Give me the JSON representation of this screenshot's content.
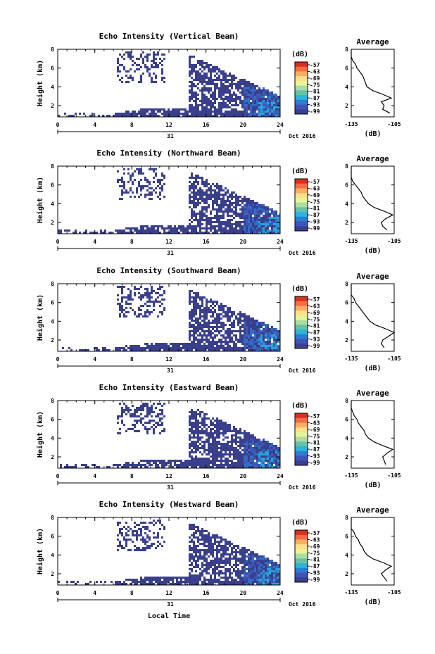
{
  "figure": {
    "x_axis_label": "Local Time",
    "day_label": "31",
    "month_label": "Oct 2016",
    "colorbar_unit": "(dB)",
    "colorbar_ticks": [
      "-57",
      "-63",
      "-69",
      "-75",
      "-81",
      "-87",
      "-93",
      "-99"
    ],
    "colorbar_colors": [
      "#d7301f",
      "#f46d43",
      "#fdae61",
      "#fee08b",
      "#e6f598",
      "#abdda4",
      "#66c2a5",
      "#29b6d8",
      "#2c7bd6",
      "#3f54b8",
      "#3c3f8f"
    ],
    "avg_title": "Average",
    "avg_xlabel": "(dB)",
    "avg_xticks": [
      "-135",
      "-105"
    ]
  },
  "chart_data": [
    {
      "type": "heatmap",
      "title": "Echo Intensity (Vertical Beam)",
      "xlabel": "",
      "ylabel": "Height (km)",
      "xlim": [
        0,
        24
      ],
      "ylim": [
        0.8,
        8
      ],
      "xticks": [
        0,
        4,
        8,
        12,
        16,
        20,
        24
      ],
      "yticks": [
        2,
        4,
        6,
        8
      ],
      "avg_profile": {
        "height": [
          1.2,
          1.6,
          2,
          2.4,
          2.8,
          3.2,
          3.6,
          4,
          4.4,
          4.8,
          5.2,
          5.6,
          6,
          6.4,
          6.8,
          7.2,
          7.6,
          8
        ],
        "db": [
          -108,
          -113,
          -112,
          -114,
          -107,
          -113,
          -120,
          -124,
          -125,
          -126,
          -127,
          -129,
          -131,
          -132,
          -134,
          -135,
          -136,
          -136
        ]
      }
    },
    {
      "type": "heatmap",
      "title": "Echo Intensity (Northward Beam)",
      "xlabel": "",
      "ylabel": "Height (km)",
      "xlim": [
        0,
        24
      ],
      "ylim": [
        0.8,
        8
      ],
      "xticks": [
        0,
        4,
        8,
        12,
        16,
        20,
        24
      ],
      "yticks": [
        2,
        4,
        6,
        8
      ],
      "avg_profile": {
        "height": [
          1.2,
          1.6,
          2,
          2.4,
          2.8,
          3.2,
          3.6,
          4,
          4.4,
          4.8,
          5.2,
          5.6,
          6,
          6.4,
          6.8,
          7.2,
          7.6,
          8
        ],
        "db": [
          -110,
          -113,
          -114,
          -111,
          -106,
          -112,
          -119,
          -123,
          -125,
          -127,
          -128,
          -130,
          -132,
          -134,
          -135,
          -136,
          -136,
          -136
        ]
      }
    },
    {
      "type": "heatmap",
      "title": "Echo Intensity (Southward Beam)",
      "xlabel": "",
      "ylabel": "Height (km)",
      "xlim": [
        0,
        24
      ],
      "ylim": [
        0.8,
        8
      ],
      "xticks": [
        0,
        4,
        8,
        12,
        16,
        20,
        24
      ],
      "yticks": [
        2,
        4,
        6,
        8
      ],
      "avg_profile": {
        "height": [
          1.2,
          1.6,
          2,
          2.4,
          2.8,
          3.2,
          3.6,
          4,
          4.4,
          4.8,
          5.2,
          5.6,
          6,
          6.4,
          6.8,
          7.2,
          7.6,
          8
        ],
        "db": [
          -112,
          -114,
          -113,
          -109,
          -105,
          -111,
          -118,
          -122,
          -124,
          -126,
          -128,
          -130,
          -132,
          -133,
          -135,
          -136,
          -136,
          -136
        ]
      }
    },
    {
      "type": "heatmap",
      "title": "Echo Intensity (Eastward Beam)",
      "xlabel": "",
      "ylabel": "Height (km)",
      "xlim": [
        0,
        24
      ],
      "ylim": [
        0.8,
        8
      ],
      "xticks": [
        0,
        4,
        8,
        12,
        16,
        20,
        24
      ],
      "yticks": [
        2,
        4,
        6,
        8
      ],
      "avg_profile": {
        "height": [
          1.2,
          1.6,
          2,
          2.4,
          2.8,
          3.2,
          3.6,
          4,
          4.4,
          4.8,
          5.2,
          5.6,
          6,
          6.4,
          6.8,
          7.2,
          7.6,
          8
        ],
        "db": [
          -111,
          -112,
          -113,
          -110,
          -106,
          -113,
          -119,
          -123,
          -125,
          -126,
          -128,
          -130,
          -131,
          -133,
          -134,
          -135,
          -136,
          -136
        ]
      }
    },
    {
      "type": "heatmap",
      "title": "Echo Intensity (Westward Beam)",
      "xlabel": "",
      "ylabel": "Height (km)",
      "xlim": [
        0,
        24
      ],
      "ylim": [
        0.8,
        8
      ],
      "xticks": [
        0,
        4,
        8,
        12,
        16,
        20,
        24
      ],
      "yticks": [
        2,
        4,
        6,
        8
      ],
      "avg_profile": {
        "height": [
          1.2,
          1.6,
          2,
          2.4,
          2.8,
          3.2,
          3.6,
          4,
          4.4,
          4.8,
          5.2,
          5.6,
          6,
          6.4,
          6.8,
          7.2,
          7.6,
          8
        ],
        "db": [
          -110,
          -112,
          -114,
          -111,
          -107,
          -113,
          -120,
          -124,
          -126,
          -127,
          -129,
          -130,
          -132,
          -133,
          -135,
          -136,
          -136,
          -136
        ]
      }
    }
  ]
}
